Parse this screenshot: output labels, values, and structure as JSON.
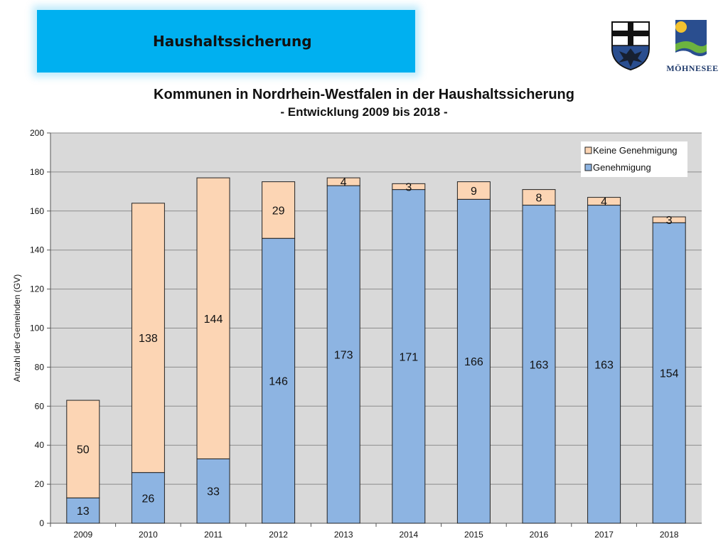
{
  "banner": {
    "title": "Haushaltssicherung"
  },
  "logos": {
    "coat_of_arms": "coat-of-arms-icon",
    "moehnesee_logo": "moehnesee-logo-icon",
    "moehnesee_text": "MÖHNESEE"
  },
  "colors": {
    "banner": "#00b0f0",
    "genehmigung": "#8db4e2",
    "keine_genehmigung": "#fcd5b4",
    "plot_background": "#d9d9d9"
  },
  "chart_data": {
    "type": "bar",
    "stacked": true,
    "title": "Kommunen in Nordrhein-Westfalen in der Haushaltssicherung",
    "subtitle": "- Entwicklung 2009 bis 2018 -",
    "xlabel": "",
    "ylabel": "Anzahl der Gemeinden (GV)",
    "ylim": [
      0,
      200
    ],
    "yticks": [
      0,
      20,
      40,
      60,
      80,
      100,
      120,
      140,
      160,
      180,
      200
    ],
    "grid": true,
    "legend_position": "top-right",
    "categories": [
      "2009",
      "2010",
      "2011",
      "2012",
      "2013",
      "2014",
      "2015",
      "2016",
      "2017",
      "2018"
    ],
    "series": [
      {
        "name": "Genehmigung",
        "color": "#8db4e2",
        "values": [
          13,
          26,
          33,
          146,
          173,
          171,
          166,
          163,
          163,
          154
        ]
      },
      {
        "name": "Keine Genehmigung",
        "color": "#fcd5b4",
        "values": [
          50,
          138,
          144,
          29,
          4,
          3,
          9,
          8,
          4,
          3
        ]
      }
    ],
    "legend": [
      "Keine Genehmigung",
      "Genehmigung"
    ]
  }
}
